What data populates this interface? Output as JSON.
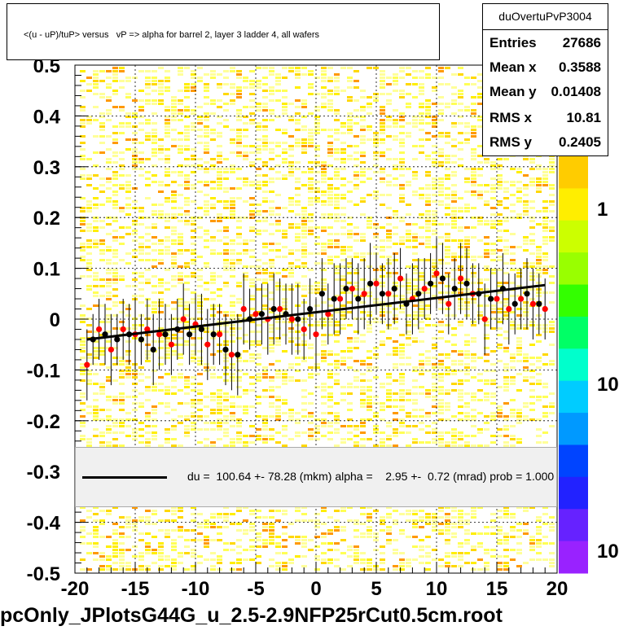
{
  "title": "<(u - uP)/tuP> versus   vP => alpha for barrel 2, layer 3 ladder 4, all wafers",
  "stats": {
    "name": "duOvertuPvP3004",
    "rows": [
      {
        "label": "Entries",
        "value": "27686"
      },
      {
        "label": "Mean x",
        "value": "0.3588"
      },
      {
        "label": "Mean y",
        "value": "0.01408"
      },
      {
        "label": "RMS x",
        "value": "10.81"
      },
      {
        "label": "RMS y",
        "value": "0.2405"
      }
    ]
  },
  "fit_legend": "du =  100.64 +- 78.28 (mkm) alpha =    2.95 +-  0.72 (mrad) prob = 1.000",
  "footer": "pcOnly_JPlotsG44G_u_2.5-2.9NFP25rCut0.5cm.root",
  "colors": {
    "black_markers": "#000000",
    "red_markers": "#ff0000",
    "fit_line": "#000000",
    "heatmap_low": "#ffff99",
    "heatmap_mid": "#ffd800",
    "heatmap_high": "#ff9900"
  },
  "chart_data": {
    "type": "scatter",
    "xlim": [
      -20,
      20
    ],
    "ylim": [
      -0.5,
      0.5
    ],
    "x_ticks": [
      "-20",
      "-15",
      "-10",
      "-5",
      "0",
      "5",
      "10",
      "15",
      "20"
    ],
    "y_ticks": [
      "-0.5",
      "-0.4",
      "-0.3",
      "-0.2",
      "-0.1",
      "0",
      "0.1",
      "0.2",
      "0.3",
      "0.4",
      "0.5"
    ],
    "colorbar_ticks": [
      "1",
      "10",
      "10"
    ],
    "grid": true,
    "fit_line": {
      "x": [
        -19,
        19
      ],
      "y": [
        -0.04,
        0.067
      ]
    },
    "series": [
      {
        "color": "black",
        "x": [
          -18.5,
          -17.5,
          -16.5,
          -15.5,
          -14.5,
          -13.5,
          -12.5,
          -11.5,
          -10.5,
          -9.5,
          -8.5,
          -7.5,
          -6.5,
          -5.5,
          -4.5,
          -3.5,
          -2.5,
          -1.5,
          -0.5,
          0.5,
          1.5,
          2.5,
          3.5,
          4.5,
          5.5,
          6.5,
          7.5,
          8.5,
          9.5,
          10.5,
          11.5,
          12.5,
          13.5,
          14.5,
          15.5,
          16.5,
          17.5,
          18.5
        ],
        "y": [
          -0.04,
          -0.03,
          -0.04,
          -0.03,
          -0.04,
          -0.06,
          -0.03,
          -0.02,
          -0.03,
          -0.02,
          -0.03,
          -0.06,
          -0.07,
          0.0,
          0.01,
          0.02,
          0.01,
          0.0,
          0.02,
          0.05,
          0.04,
          0.06,
          0.04,
          0.07,
          0.05,
          0.06,
          0.03,
          0.05,
          0.07,
          0.08,
          0.06,
          0.07,
          0.05,
          0.04,
          0.06,
          0.03,
          0.05,
          0.03
        ],
        "err": [
          0.05,
          0.06,
          0.05,
          0.06,
          0.05,
          0.07,
          0.06,
          0.06,
          0.06,
          0.07,
          0.06,
          0.07,
          0.08,
          0.06,
          0.06,
          0.07,
          0.06,
          0.07,
          0.06,
          0.07,
          0.07,
          0.06,
          0.07,
          0.08,
          0.06,
          0.07,
          0.06,
          0.07,
          0.06,
          0.07,
          0.06,
          0.07,
          0.06,
          0.06,
          0.07,
          0.06,
          0.07,
          0.06
        ]
      },
      {
        "color": "red",
        "x": [
          -19.0,
          -18.0,
          -17.0,
          -16.0,
          -15.0,
          -14.0,
          -13.0,
          -12.0,
          -11.0,
          -10.0,
          -9.0,
          -8.0,
          -7.0,
          -6.0,
          -5.0,
          -4.0,
          -3.0,
          -2.0,
          -1.0,
          0.0,
          1.0,
          2.0,
          3.0,
          4.0,
          5.0,
          6.0,
          7.0,
          8.0,
          9.0,
          10.0,
          11.0,
          12.0,
          13.0,
          14.0,
          15.0,
          16.0,
          17.0,
          18.0,
          19.0
        ],
        "y": [
          -0.09,
          -0.02,
          -0.06,
          -0.02,
          -0.03,
          -0.02,
          -0.03,
          -0.05,
          0.0,
          -0.01,
          -0.05,
          -0.03,
          -0.07,
          0.02,
          0.01,
          0.0,
          0.02,
          0.0,
          -0.02,
          -0.03,
          0.01,
          0.04,
          0.06,
          0.05,
          0.07,
          0.05,
          0.08,
          0.04,
          0.06,
          0.09,
          0.03,
          0.08,
          0.05,
          0.0,
          0.04,
          0.02,
          0.04,
          0.03,
          0.02
        ],
        "err": [
          0.07,
          0.06,
          0.07,
          0.06,
          0.07,
          0.06,
          0.07,
          0.06,
          0.07,
          0.06,
          0.07,
          0.06,
          0.07,
          0.07,
          0.06,
          0.07,
          0.06,
          0.07,
          0.06,
          0.07,
          0.06,
          0.07,
          0.06,
          0.07,
          0.06,
          0.07,
          0.06,
          0.07,
          0.06,
          0.07,
          0.06,
          0.07,
          0.06,
          0.07,
          0.06,
          0.07,
          0.06,
          0.07,
          0.06
        ]
      }
    ]
  }
}
